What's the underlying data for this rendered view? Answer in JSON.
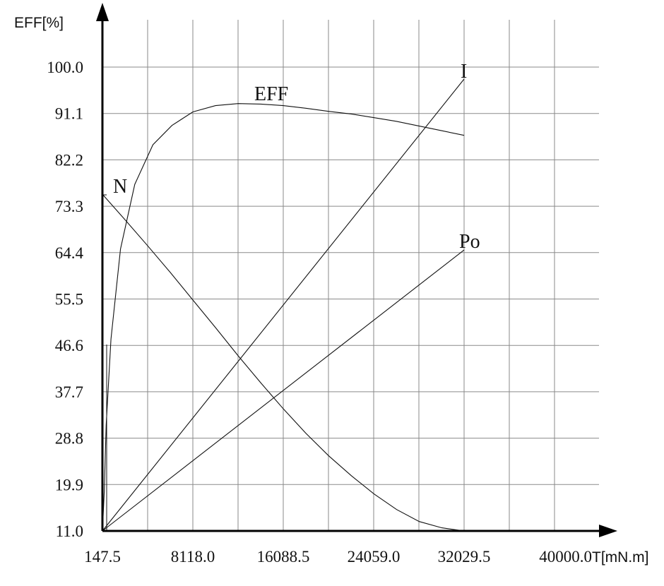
{
  "chart_data": {
    "type": "line",
    "ylabel": "EFF[%]",
    "xlabel": "T[mN.m]",
    "x_ticks": [
      "147.5",
      "8118.0",
      "16088.5",
      "24059.0",
      "32029.5",
      "40000.0"
    ],
    "x_tick_values": [
      147.5,
      8118.0,
      16088.5,
      24059.0,
      32029.5,
      40000.0
    ],
    "y_ticks": [
      "11.0",
      "19.9",
      "28.8",
      "37.7",
      "46.6",
      "55.5",
      "64.4",
      "73.3",
      "82.2",
      "91.1",
      "100.0"
    ],
    "y_tick_values": [
      11.0,
      19.9,
      28.8,
      37.7,
      46.6,
      55.5,
      64.4,
      73.3,
      82.2,
      91.1,
      100.0
    ],
    "xlim": [
      147.5,
      40000.0
    ],
    "ylim": [
      11.0,
      100.0
    ],
    "grid": true,
    "series": [
      {
        "name": "EFF",
        "x": [
          147.5,
          312.2,
          396.3,
          480.3,
          900.4,
          1740.6,
          3000.9,
          4597.2,
          6277.5,
          8118.0,
          10119.4,
          12114.2,
          14105.6,
          16088.5,
          18075.4,
          20075.3,
          22075.2,
          24059.0,
          26044.8,
          28044.6,
          30044.5,
          32029.5
        ],
        "y": [
          11.0,
          18.5,
          25.2,
          31.3,
          47.8,
          65.1,
          77.5,
          85.1,
          88.8,
          91.4,
          92.6,
          93.0,
          92.9,
          92.6,
          92.1,
          91.5,
          91.0,
          90.3,
          89.6,
          88.7,
          87.8,
          86.9
        ]
      },
      {
        "name": "N",
        "x": [
          147.5,
          2142.3,
          4137.2,
          6132.1,
          8127.0,
          10121.9,
          12116.8,
          14111.6,
          16106.5,
          18101.4,
          20096.3,
          22091.2,
          24086.1,
          26081.0,
          28075.9,
          30070.8,
          32029.5
        ],
        "y": [
          75.6,
          70.7,
          65.7,
          60.6,
          55.3,
          50.0,
          44.6,
          39.4,
          34.4,
          29.7,
          25.4,
          21.6,
          18.1,
          15.1,
          12.8,
          11.6,
          11.0
        ]
      },
      {
        "name": "I",
        "x": [
          147.5,
          32029.5
        ],
        "y": [
          11.0,
          97.7
        ]
      },
      {
        "name": "Po",
        "x": [
          147.5,
          32029.5
        ],
        "y": [
          11.0,
          64.9
        ]
      }
    ]
  }
}
